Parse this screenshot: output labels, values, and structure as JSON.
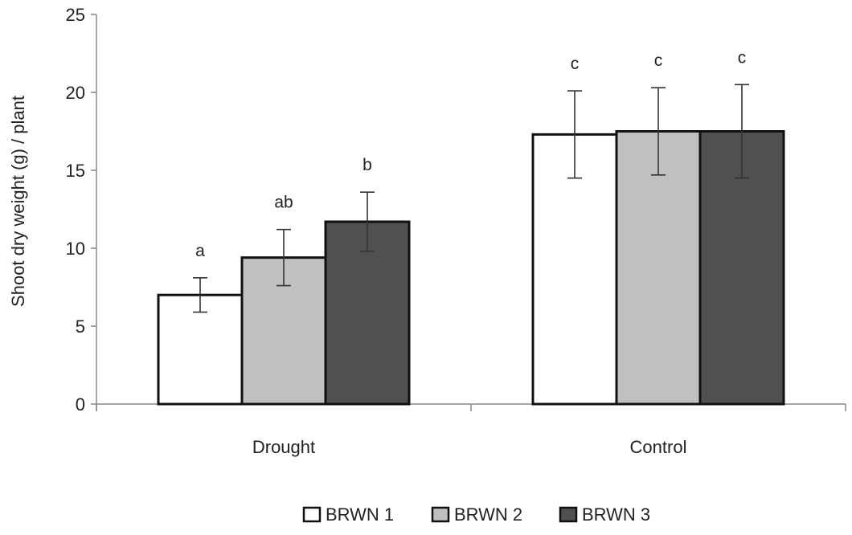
{
  "chart_data": {
    "type": "bar",
    "title": "",
    "xlabel": "",
    "ylabel": "Shoot dry weight (g) / plant",
    "ylim": [
      0,
      25
    ],
    "yticks": [
      "0",
      "5",
      "10",
      "15",
      "20",
      "25"
    ],
    "categories": [
      "Drought",
      "Control"
    ],
    "series": [
      {
        "name": "BRWN 1",
        "color": "#ffffff",
        "values": [
          7.0,
          17.3
        ],
        "errors": [
          1.1,
          2.8
        ],
        "labels": [
          "a",
          "c"
        ]
      },
      {
        "name": "BRWN 2",
        "color": "#c0c0c0",
        "values": [
          9.4,
          17.5
        ],
        "errors": [
          1.8,
          2.8
        ],
        "labels": [
          "ab",
          "c"
        ]
      },
      {
        "name": "BRWN 3",
        "color": "#505050",
        "values": [
          11.7,
          17.5
        ],
        "errors": [
          1.9,
          3.0
        ],
        "labels": [
          "b",
          "c"
        ]
      }
    ],
    "grid": false,
    "legend_position": "bottom"
  }
}
